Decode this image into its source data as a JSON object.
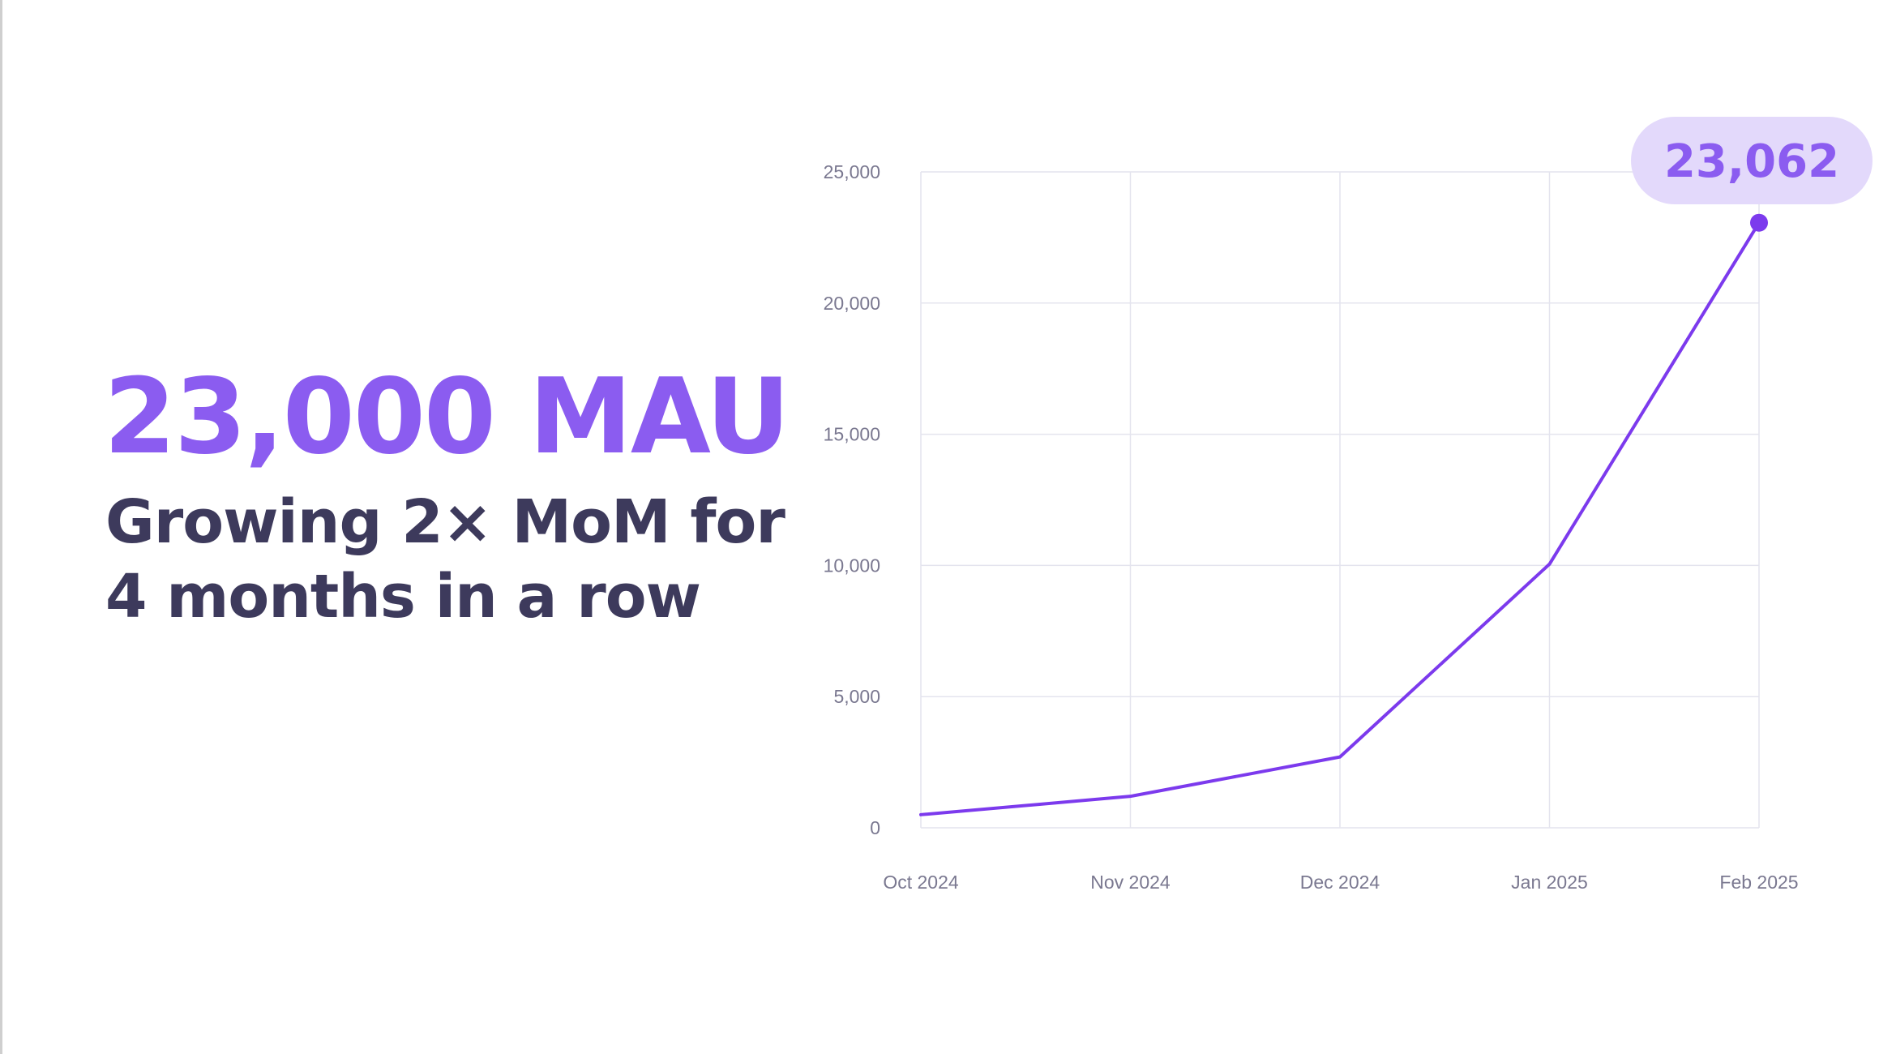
{
  "headline": "23,000 MAU",
  "subheadline": [
    "Growing 2× MoM for",
    "4 months in a row"
  ],
  "colors": {
    "accent": "#8b5cf0",
    "line": "#7c3aed",
    "callout_bg": "#e3d9fb",
    "text_dark": "#3d3a5c",
    "grid": "#e4e4ee",
    "tick": "#7a7890"
  },
  "chart_data": {
    "type": "line",
    "x": [
      "Oct 2024",
      "Nov 2024",
      "Dec 2024",
      "Jan 2025",
      "Feb 2025"
    ],
    "series": [
      {
        "values": [
          500,
          1200,
          2700,
          10050,
          23062
        ]
      }
    ],
    "ylim": [
      0,
      25000
    ],
    "yticks": [
      0,
      5000,
      10000,
      15000,
      20000,
      25000
    ],
    "ytick_labels": [
      "0",
      "5,000",
      "10,000",
      "15,000",
      "20,000",
      "25,000"
    ],
    "grid": true,
    "callout": {
      "label": "23,062",
      "value": 23062,
      "index": 4
    }
  }
}
